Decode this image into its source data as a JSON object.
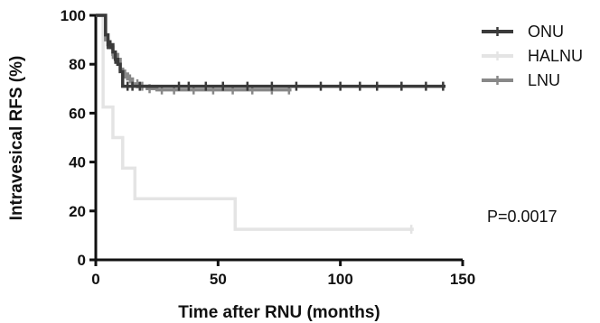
{
  "chart_data": {
    "type": "line",
    "step": true,
    "title": "",
    "xlabel": "Time after RNU (months)",
    "ylabel": "Intravesical RFS (%)",
    "xlim": [
      0,
      150
    ],
    "ylim": [
      0,
      100
    ],
    "x_ticks": [
      0,
      50,
      100,
      150
    ],
    "y_ticks": [
      0,
      20,
      40,
      60,
      80,
      100
    ],
    "grid": false,
    "legend_position": "top-right",
    "annotation": "P=0.0017",
    "series": [
      {
        "name": "ONU",
        "color": "#3a3a3a",
        "points": [
          [
            0,
            100
          ],
          [
            3,
            100
          ],
          [
            4,
            92
          ],
          [
            5,
            88
          ],
          [
            7,
            85
          ],
          [
            8,
            82
          ],
          [
            9,
            80
          ],
          [
            10,
            77
          ],
          [
            11,
            71
          ],
          [
            12,
            71
          ],
          [
            143,
            71
          ]
        ],
        "censored": [
          5,
          6,
          8,
          13,
          15,
          18,
          34,
          38,
          45,
          52,
          62,
          72,
          82,
          92,
          100,
          108,
          115,
          125,
          135,
          142
        ]
      },
      {
        "name": "HALNU",
        "color": "#e4e4e4",
        "points": [
          [
            0,
            100
          ],
          [
            3,
            100
          ],
          [
            3,
            62.5
          ],
          [
            7,
            62.5
          ],
          [
            7,
            50
          ],
          [
            11,
            50
          ],
          [
            11,
            37.5
          ],
          [
            16,
            37.5
          ],
          [
            16,
            25
          ],
          [
            57,
            25
          ],
          [
            57,
            12.5
          ],
          [
            130,
            12.5
          ]
        ],
        "censored": [
          129
        ]
      },
      {
        "name": "LNU",
        "color": "#888888",
        "points": [
          [
            0,
            100
          ],
          [
            3,
            100
          ],
          [
            4,
            90
          ],
          [
            5,
            87
          ],
          [
            7,
            84
          ],
          [
            9,
            82
          ],
          [
            10,
            78
          ],
          [
            11,
            76
          ],
          [
            13,
            74
          ],
          [
            15,
            72
          ],
          [
            18,
            71
          ],
          [
            21,
            70
          ],
          [
            25,
            69.5
          ],
          [
            80,
            69.5
          ]
        ],
        "censored": [
          7,
          9,
          12,
          14,
          17,
          19,
          22,
          27,
          32,
          40,
          48,
          56,
          64,
          72,
          79
        ]
      }
    ]
  }
}
